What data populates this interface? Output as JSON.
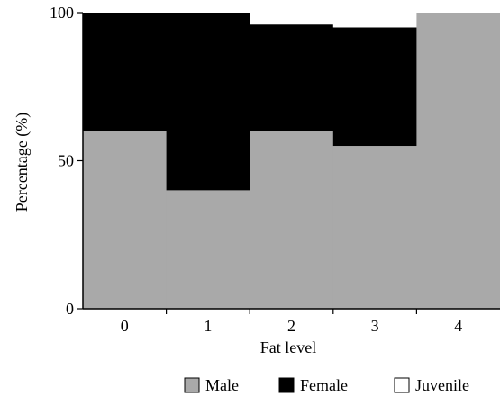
{
  "chart_data": {
    "type": "bar",
    "stacked": true,
    "categories": [
      "0",
      "1",
      "2",
      "3",
      "4"
    ],
    "series": [
      {
        "name": "Male",
        "values": [
          60,
          40,
          60,
          55,
          100
        ],
        "color": "#a9a9a9"
      },
      {
        "name": "Female",
        "values": [
          40,
          60,
          36,
          40,
          0
        ],
        "color": "#000000"
      },
      {
        "name": "Juvenile",
        "values": [
          0,
          0,
          4,
          5,
          0
        ],
        "color": "#ffffff"
      }
    ],
    "xlabel": "Fat level",
    "ylabel": "Percentage (%)",
    "ylim": [
      0,
      100
    ],
    "yticks": [
      0,
      50,
      100
    ],
    "grid": false,
    "legend": "bottom"
  }
}
